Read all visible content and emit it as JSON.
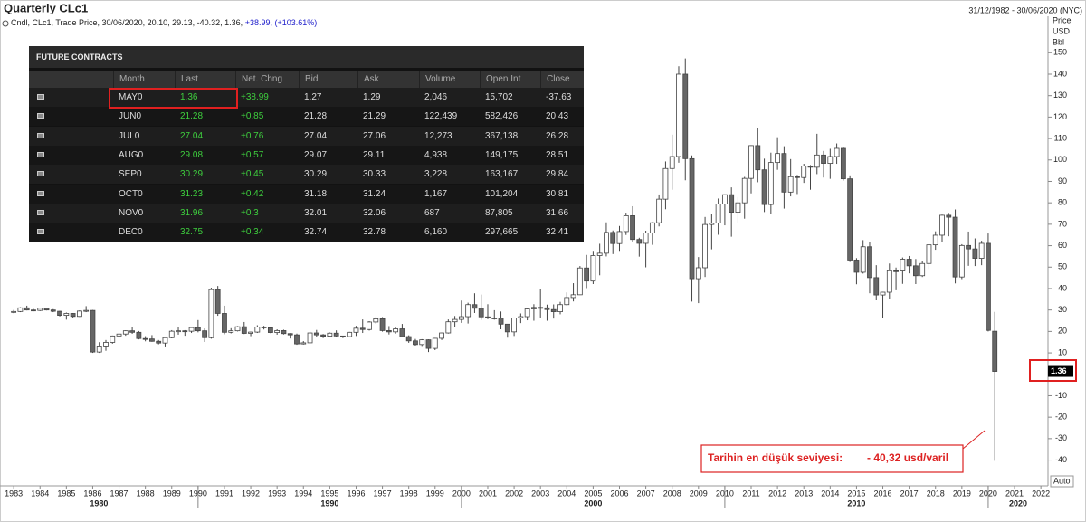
{
  "header": {
    "title": "Quarterly CLc1",
    "range": "31/12/1982 - 30/06/2020 (NYC)",
    "legend": "Cndl, CLc1, Trade Price, 30/06/2020, 20.10, 29.13, -40.32, 1.36,",
    "change": "+38.99,",
    "change_pct": "(+103.61%)"
  },
  "chart_data": {
    "type": "candlestick",
    "ylabel": [
      "Price",
      "USD",
      "Bbl"
    ],
    "scale_button": "Auto",
    "up_color": "#ffffff",
    "down_color": "#666666",
    "edge_color": "#444444",
    "xlim": [
      1982.48,
      2022.27
    ],
    "ylim": [
      -52,
      167
    ],
    "yticks": [
      -40,
      -30,
      -20,
      -10,
      0,
      10,
      20,
      30,
      40,
      50,
      60,
      70,
      80,
      90,
      100,
      110,
      120,
      130,
      140,
      150
    ],
    "xticks": [
      1983,
      1984,
      1985,
      1986,
      1987,
      1988,
      1989,
      1990,
      1991,
      1992,
      1993,
      1994,
      1995,
      1996,
      1997,
      1998,
      1999,
      2000,
      2001,
      2002,
      2003,
      2004,
      2005,
      2006,
      2007,
      2008,
      2009,
      2010,
      2011,
      2012,
      2013,
      2014,
      2015,
      2016,
      2017,
      2018,
      2019,
      2020,
      2021,
      2022
    ],
    "xticks_major": [
      1980,
      1990,
      2000,
      2010,
      2020
    ],
    "x": [
      1983,
      1983.25,
      1983.5,
      1983.75,
      1984,
      1984.25,
      1984.5,
      1984.75,
      1985,
      1985.25,
      1985.5,
      1985.75,
      1986,
      1986.25,
      1986.5,
      1986.75,
      1987,
      1987.25,
      1987.5,
      1987.75,
      1988,
      1988.25,
      1988.5,
      1988.75,
      1989,
      1989.25,
      1989.5,
      1989.75,
      1990,
      1990.25,
      1990.5,
      1990.75,
      1991,
      1991.25,
      1991.5,
      1991.75,
      1992,
      1992.25,
      1992.5,
      1992.75,
      1993,
      1993.25,
      1993.5,
      1993.75,
      1994,
      1994.25,
      1994.5,
      1994.75,
      1995,
      1995.25,
      1995.5,
      1995.75,
      1996,
      1996.25,
      1996.5,
      1996.75,
      1997,
      1997.25,
      1997.5,
      1997.75,
      1998,
      1998.25,
      1998.5,
      1998.75,
      1999,
      1999.25,
      1999.5,
      1999.75,
      2000,
      2000.25,
      2000.5,
      2000.75,
      2001,
      2001.25,
      2001.5,
      2001.75,
      2002,
      2002.25,
      2002.5,
      2002.75,
      2003,
      2003.25,
      2003.5,
      2003.75,
      2004,
      2004.25,
      2004.5,
      2004.75,
      2005,
      2005.25,
      2005.5,
      2005.75,
      2006,
      2006.25,
      2006.5,
      2006.75,
      2007,
      2007.25,
      2007.5,
      2007.75,
      2008,
      2008.25,
      2008.5,
      2008.75,
      2009,
      2009.25,
      2009.5,
      2009.75,
      2010,
      2010.25,
      2010.5,
      2010.75,
      2011,
      2011.25,
      2011.5,
      2011.75,
      2012,
      2012.25,
      2012.5,
      2012.75,
      2013,
      2013.25,
      2013.5,
      2013.75,
      2014,
      2014.25,
      2014.5,
      2014.75,
      2015,
      2015.25,
      2015.5,
      2015.75,
      2016,
      2016.25,
      2016.5,
      2016.75,
      2017,
      2017.25,
      2017.5,
      2017.75,
      2018,
      2018.25,
      2018.5,
      2018.75,
      2019,
      2019.25,
      2019.5,
      2019.75,
      2020,
      2020.25
    ],
    "open": [
      29.0,
      29.3,
      31.0,
      30.0,
      29.8,
      30.8,
      30.0,
      29.4,
      27.5,
      28.4,
      27.0,
      29.5,
      29.8,
      10.4,
      12.8,
      14.9,
      17.9,
      18.8,
      20.3,
      19.6,
      16.7,
      16.5,
      15.4,
      14.6,
      17.1,
      20.1,
      20.3,
      20.1,
      21.8,
      20.3,
      17.1,
      39.5,
      28.4,
      19.6,
      20.3,
      22.2,
      19.1,
      19.7,
      22.1,
      21.7,
      19.5,
      20.4,
      19.0,
      18.4,
      14.2,
      14.7,
      19.3,
      18.4,
      17.8,
      19.2,
      17.9,
      17.6,
      19.6,
      21.5,
      20.9,
      24.4,
      25.9,
      20.4,
      19.8,
      21.2,
      17.6,
      15.6,
      13.9,
      16.1,
      12.1,
      16.8,
      19.3,
      24.5,
      25.6,
      26.9,
      32.5,
      30.8,
      26.8,
      26.3,
      26.2,
      23.4,
      19.8,
      26.3,
      26.9,
      30.5,
      31.2,
      31.0,
      30.2,
      29.2,
      32.5,
      35.8,
      37.1,
      49.6,
      43.5,
      55.4,
      56.5,
      66.2,
      61.0,
      66.6,
      74.0,
      62.9,
      61.1,
      65.9,
      70.7,
      81.7,
      96.0,
      101.6,
      140.0,
      100.6,
      44.6,
      49.7,
      69.9,
      70.6,
      79.4,
      83.8,
      75.6,
      80.0,
      91.4,
      106.7,
      95.4,
      79.2,
      98.8,
      103.0,
      85.0,
      92.2,
      91.8,
      97.2,
      96.6,
      102.3,
      98.4,
      101.6,
      105.4,
      91.2,
      53.3,
      47.6,
      59.5,
      45.1,
      37.0,
      38.3,
      48.3,
      48.2,
      53.7,
      50.6,
      46.0,
      51.7,
      60.4,
      64.9,
      74.2,
      73.3,
      45.4,
      60.1,
      58.5,
      54.1,
      61.1,
      20.1
    ],
    "high": [
      30.0,
      31.3,
      32.0,
      30.5,
      31.0,
      31.0,
      30.4,
      29.6,
      28.8,
      28.6,
      29.8,
      31.8,
      30.0,
      15.0,
      16.0,
      18.1,
      19.0,
      20.5,
      22.2,
      20.2,
      17.8,
      18.3,
      16.0,
      17.5,
      20.6,
      22.0,
      20.6,
      22.0,
      25.3,
      21.4,
      40.4,
      41.2,
      32.0,
      21.5,
      22.5,
      24.4,
      19.9,
      22.9,
      22.6,
      22.1,
      21.0,
      20.8,
      19.2,
      19.0,
      15.5,
      20.0,
      20.7,
      18.8,
      19.5,
      20.5,
      18.0,
      19.8,
      22.6,
      25.6,
      24.8,
      26.6,
      26.7,
      22.5,
      21.8,
      23.5,
      18.2,
      16.5,
      16.4,
      16.3,
      17.0,
      19.5,
      25.6,
      27.2,
      34.4,
      33.4,
      37.8,
      37.2,
      32.7,
      29.9,
      29.3,
      23.5,
      26.5,
      28.4,
      30.8,
      32.7,
      39.9,
      32.5,
      32.6,
      33.8,
      38.2,
      42.5,
      50.5,
      55.7,
      57.6,
      60.9,
      70.9,
      67.1,
      69.2,
      75.4,
      78.4,
      63.7,
      67.0,
      71.0,
      83.9,
      99.3,
      111.8,
      143.7,
      147.3,
      102.1,
      54.7,
      73.4,
      75.0,
      82.0,
      83.9,
      87.2,
      82.7,
      92.1,
      106.9,
      114.8,
      100.6,
      103.4,
      110.6,
      106.4,
      100.4,
      93.0,
      98.2,
      97.6,
      112.2,
      104.2,
      105.2,
      107.7,
      106.0,
      92.8,
      54.2,
      62.6,
      61.6,
      50.9,
      38.4,
      51.7,
      49.8,
      54.5,
      55.2,
      53.8,
      52.9,
      60.5,
      66.7,
      74.5,
      75.3,
      76.9,
      60.7,
      66.6,
      63.4,
      62.3,
      65.7,
      29.13
    ],
    "low": [
      28.5,
      29.0,
      29.8,
      29.4,
      29.5,
      29.8,
      29.0,
      27.0,
      25.5,
      26.5,
      26.8,
      29.0,
      10.0,
      10.0,
      11.0,
      14.3,
      17.3,
      18.0,
      18.9,
      16.3,
      15.4,
      15.2,
      14.0,
      12.6,
      16.8,
      18.5,
      18.0,
      19.3,
      19.6,
      15.1,
      16.6,
      27.3,
      18.7,
      19.1,
      20.0,
      18.8,
      17.8,
      19.3,
      20.9,
      19.2,
      18.5,
      18.6,
      16.7,
      13.8,
      13.9,
      14.5,
      17.2,
      16.9,
      17.3,
      17.5,
      16.9,
      17.2,
      17.9,
      19.3,
      20.4,
      23.7,
      19.9,
      18.6,
      19.0,
      17.5,
      14.7,
      13.0,
      12.8,
      10.4,
      11.3,
      16.0,
      19.0,
      22.0,
      24.0,
      23.7,
      28.6,
      25.4,
      25.7,
      25.5,
      21.0,
      17.1,
      17.9,
      23.9,
      25.2,
      25.0,
      26.5,
      25.0,
      26.0,
      28.0,
      32.1,
      34.0,
      37.0,
      40.2,
      42.1,
      46.2,
      55.0,
      56.1,
      57.6,
      65.0,
      61.7,
      54.9,
      49.9,
      60.4,
      69.0,
      77.0,
      86.1,
      98.7,
      90.5,
      33.9,
      33.2,
      45.4,
      58.3,
      65.1,
      69.5,
      64.2,
      70.8,
      72.6,
      84.4,
      89.6,
      75.7,
      74.9,
      95.4,
      77.3,
      83.0,
      84.1,
      89.3,
      86.1,
      93.4,
      91.8,
      91.2,
      98.2,
      90.4,
      52.4,
      42.0,
      47.0,
      37.8,
      34.5,
      26.1,
      35.2,
      39.2,
      42.2,
      47.1,
      42.1,
      45.4,
      49.1,
      58.1,
      61.8,
      64.4,
      42.4,
      44.4,
      50.6,
      50.5,
      50.9,
      20.0,
      -40.32
    ],
    "close": [
      29.3,
      31.0,
      30.0,
      29.8,
      30.8,
      30.0,
      29.4,
      27.5,
      28.4,
      27.0,
      29.5,
      29.8,
      10.4,
      12.8,
      14.9,
      17.9,
      18.8,
      20.3,
      19.6,
      16.7,
      16.5,
      15.4,
      14.6,
      17.1,
      20.1,
      20.3,
      20.1,
      21.8,
      20.3,
      17.1,
      39.5,
      28.4,
      19.6,
      20.3,
      22.2,
      19.1,
      19.7,
      22.1,
      21.7,
      19.5,
      20.4,
      19.0,
      18.4,
      14.2,
      14.7,
      19.3,
      18.4,
      17.8,
      19.2,
      17.9,
      17.6,
      19.6,
      21.5,
      20.9,
      24.4,
      25.9,
      20.4,
      19.8,
      21.2,
      17.6,
      15.6,
      13.9,
      16.1,
      12.1,
      16.8,
      19.3,
      24.5,
      25.6,
      26.9,
      32.5,
      30.8,
      26.8,
      26.3,
      26.2,
      23.4,
      19.8,
      26.3,
      26.9,
      30.5,
      31.2,
      31.0,
      30.2,
      29.2,
      32.5,
      35.8,
      37.1,
      49.6,
      43.5,
      55.4,
      56.5,
      66.2,
      61.0,
      66.6,
      74.0,
      62.9,
      61.1,
      65.9,
      70.7,
      81.7,
      96.0,
      101.6,
      140.0,
      100.6,
      44.6,
      49.7,
      69.9,
      70.6,
      79.4,
      83.8,
      75.6,
      80.0,
      91.4,
      106.7,
      95.4,
      79.2,
      98.8,
      103.0,
      85.0,
      92.2,
      91.8,
      97.2,
      96.6,
      102.3,
      98.4,
      101.6,
      105.4,
      91.2,
      53.3,
      47.6,
      59.5,
      45.1,
      37.0,
      38.3,
      48.3,
      48.2,
      53.7,
      50.6,
      46.0,
      51.7,
      60.4,
      64.9,
      74.2,
      73.3,
      45.4,
      60.1,
      58.5,
      54.1,
      61.1,
      20.5,
      1.36
    ],
    "annotation": {
      "text": "Tarihin en düşük seviyesi:",
      "value_text": "- 40,32 usd/varil"
    }
  },
  "table": {
    "title": "FUTURE CONTRACTS",
    "columns": [
      "Month",
      "Last",
      "Net. Chng",
      "Bid",
      "Ask",
      "Volume",
      "Open.Int",
      "Close"
    ],
    "rows": [
      [
        "MAY0",
        "1.36",
        "+38.99",
        "1.27",
        "1.29",
        "2,046",
        "15,702",
        "-37.63"
      ],
      [
        "JUN0",
        "21.28",
        "+0.85",
        "21.28",
        "21.29",
        "122,439",
        "582,426",
        "20.43"
      ],
      [
        "JUL0",
        "27.04",
        "+0.76",
        "27.04",
        "27.06",
        "12,273",
        "367,138",
        "26.28"
      ],
      [
        "AUG0",
        "29.08",
        "+0.57",
        "29.07",
        "29.11",
        "4,938",
        "149,175",
        "28.51"
      ],
      [
        "SEP0",
        "30.29",
        "+0.45",
        "30.29",
        "30.33",
        "3,228",
        "163,167",
        "29.84"
      ],
      [
        "OCT0",
        "31.23",
        "+0.42",
        "31.18",
        "31.24",
        "1,167",
        "101,204",
        "30.81"
      ],
      [
        "NOV0",
        "31.96",
        "+0.3",
        "32.01",
        "32.06",
        "687",
        "87,805",
        "31.66"
      ],
      [
        "DEC0",
        "32.75",
        "+0.34",
        "32.74",
        "32.78",
        "6,160",
        "297,665",
        "32.41"
      ]
    ]
  }
}
